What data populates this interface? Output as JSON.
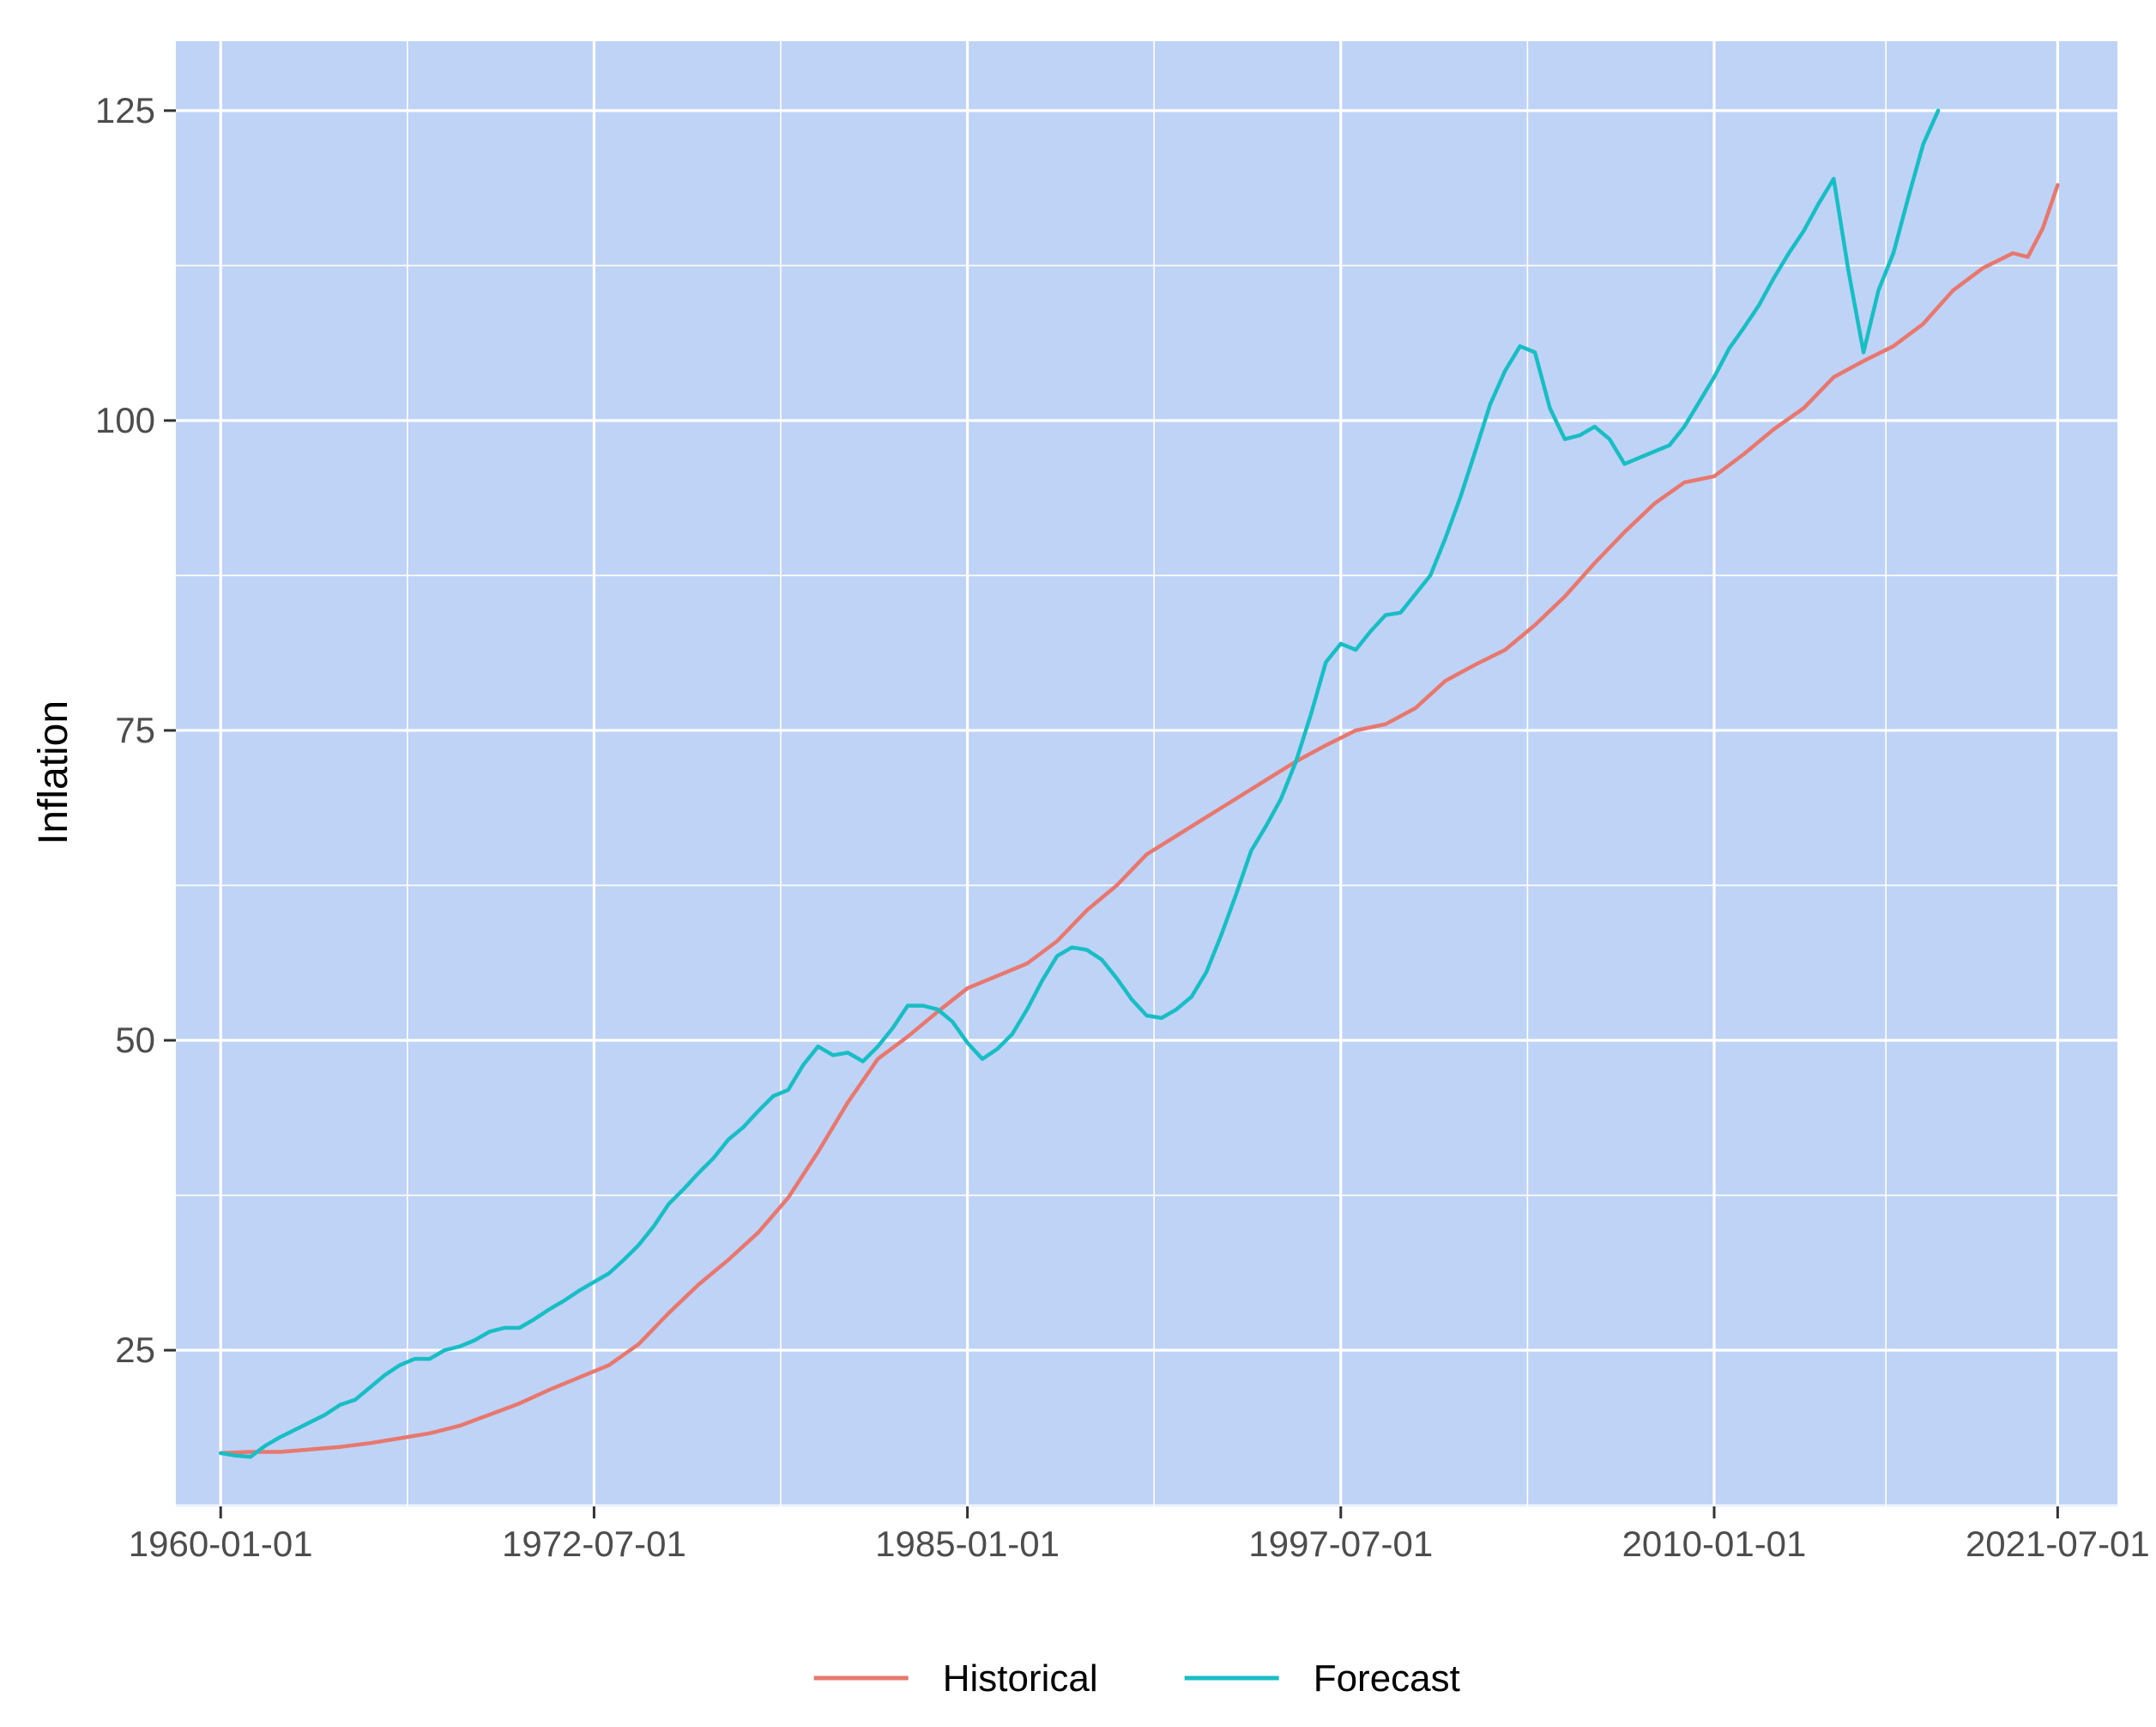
{
  "chart_data": {
    "type": "line",
    "title": "",
    "xlabel": "",
    "ylabel": "Inflation",
    "x_tick_labels": [
      "1960-01-01",
      "1972-07-01",
      "1985-01-01",
      "1997-07-01",
      "2010-01-01",
      "2021-07-01"
    ],
    "y_tick_labels": [
      "25",
      "50",
      "75",
      "100",
      "125"
    ],
    "x_range": [
      "1958-07-01",
      "2023-07-01"
    ],
    "y_range": [
      12.4,
      130.6
    ],
    "grid": true,
    "panel_background": "#bfd3f7",
    "legend_position": "bottom",
    "series": [
      {
        "name": "Historical",
        "color": "#e8776e",
        "points": [
          [
            "1960-01-01",
            16.7
          ],
          [
            "1961-01-01",
            16.8
          ],
          [
            "1962-01-01",
            16.8
          ],
          [
            "1963-01-01",
            17.0
          ],
          [
            "1964-01-01",
            17.2
          ],
          [
            "1965-01-01",
            17.5
          ],
          [
            "1966-01-01",
            17.9
          ],
          [
            "1967-01-01",
            18.3
          ],
          [
            "1968-01-01",
            18.9
          ],
          [
            "1969-01-01",
            19.8
          ],
          [
            "1970-01-01",
            20.7
          ],
          [
            "1971-01-01",
            21.8
          ],
          [
            "1972-01-01",
            22.8
          ],
          [
            "1973-01-01",
            23.8
          ],
          [
            "1974-01-01",
            25.5
          ],
          [
            "1975-01-01",
            28.0
          ],
          [
            "1976-01-01",
            30.3
          ],
          [
            "1977-01-01",
            32.3
          ],
          [
            "1978-01-01",
            34.5
          ],
          [
            "1979-01-01",
            37.3
          ],
          [
            "1980-01-01",
            41.0
          ],
          [
            "1981-01-01",
            45.0
          ],
          [
            "1982-01-01",
            48.5
          ],
          [
            "1983-01-01",
            50.3
          ],
          [
            "1984-01-01",
            52.3
          ],
          [
            "1985-01-01",
            54.2
          ],
          [
            "1986-01-01",
            55.2
          ],
          [
            "1987-01-01",
            56.2
          ],
          [
            "1988-01-01",
            58.0
          ],
          [
            "1989-01-01",
            60.5
          ],
          [
            "1990-01-01",
            62.5
          ],
          [
            "1991-01-01",
            65.0
          ],
          [
            "1992-01-01",
            66.5
          ],
          [
            "1993-01-01",
            68.0
          ],
          [
            "1994-01-01",
            69.5
          ],
          [
            "1995-01-01",
            71.0
          ],
          [
            "1996-01-01",
            72.5
          ],
          [
            "1997-01-01",
            73.8
          ],
          [
            "1998-01-01",
            75.0
          ],
          [
            "1999-01-01",
            75.5
          ],
          [
            "2000-01-01",
            76.8
          ],
          [
            "2001-01-01",
            79.0
          ],
          [
            "2002-01-01",
            80.3
          ],
          [
            "2003-01-01",
            81.5
          ],
          [
            "2004-01-01",
            83.5
          ],
          [
            "2005-01-01",
            85.8
          ],
          [
            "2006-01-01",
            88.5
          ],
          [
            "2007-01-01",
            91.0
          ],
          [
            "2008-01-01",
            93.3
          ],
          [
            "2009-01-01",
            95.0
          ],
          [
            "2010-01-01",
            95.5
          ],
          [
            "2011-01-01",
            97.3
          ],
          [
            "2012-01-01",
            99.3
          ],
          [
            "2013-01-01",
            101.0
          ],
          [
            "2014-01-01",
            103.5
          ],
          [
            "2015-01-01",
            104.8
          ],
          [
            "2016-01-01",
            106.0
          ],
          [
            "2017-01-01",
            107.8
          ],
          [
            "2018-01-01",
            110.5
          ],
          [
            "2019-01-01",
            112.3
          ],
          [
            "2020-01-01",
            113.5
          ],
          [
            "2020-07-01",
            113.2
          ],
          [
            "2021-01-01",
            115.5
          ],
          [
            "2021-07-01",
            119.0
          ]
        ]
      },
      {
        "name": "Forecast",
        "color": "#19bec4",
        "points": [
          [
            "1960-01-01",
            16.7
          ],
          [
            "1960-07-01",
            16.5
          ],
          [
            "1961-01-01",
            16.4
          ],
          [
            "1961-07-01",
            17.3
          ],
          [
            "1962-01-01",
            18.0
          ],
          [
            "1962-07-01",
            18.6
          ],
          [
            "1963-01-01",
            19.2
          ],
          [
            "1963-07-01",
            19.8
          ],
          [
            "1964-01-01",
            20.6
          ],
          [
            "1964-07-01",
            21.0
          ],
          [
            "1965-01-01",
            22.0
          ],
          [
            "1965-07-01",
            23.0
          ],
          [
            "1966-01-01",
            23.8
          ],
          [
            "1966-07-01",
            24.3
          ],
          [
            "1967-01-01",
            24.3
          ],
          [
            "1967-07-01",
            25.0
          ],
          [
            "1968-01-01",
            25.3
          ],
          [
            "1968-07-01",
            25.8
          ],
          [
            "1969-01-01",
            26.5
          ],
          [
            "1969-07-01",
            26.8
          ],
          [
            "1970-01-01",
            26.8
          ],
          [
            "1970-07-01",
            27.5
          ],
          [
            "1971-01-01",
            28.3
          ],
          [
            "1971-07-01",
            29.0
          ],
          [
            "1972-01-01",
            29.8
          ],
          [
            "1972-07-01",
            30.5
          ],
          [
            "1973-01-01",
            31.2
          ],
          [
            "1973-07-01",
            32.3
          ],
          [
            "1974-01-01",
            33.5
          ],
          [
            "1974-07-01",
            35.0
          ],
          [
            "1975-01-01",
            36.8
          ],
          [
            "1975-07-01",
            38.0
          ],
          [
            "1976-01-01",
            39.3
          ],
          [
            "1976-07-01",
            40.5
          ],
          [
            "1977-01-01",
            42.0
          ],
          [
            "1977-07-01",
            43.0
          ],
          [
            "1978-01-01",
            44.3
          ],
          [
            "1978-07-01",
            45.5
          ],
          [
            "1979-01-01",
            46.0
          ],
          [
            "1979-07-01",
            48.0
          ],
          [
            "1980-01-01",
            49.5
          ],
          [
            "1980-07-01",
            48.8
          ],
          [
            "1981-01-01",
            49.0
          ],
          [
            "1981-07-01",
            48.3
          ],
          [
            "1982-01-01",
            49.5
          ],
          [
            "1982-07-01",
            51.0
          ],
          [
            "1983-01-01",
            52.8
          ],
          [
            "1983-07-01",
            52.8
          ],
          [
            "1984-01-01",
            52.5
          ],
          [
            "1984-07-01",
            51.5
          ],
          [
            "1985-01-01",
            49.8
          ],
          [
            "1985-07-01",
            48.5
          ],
          [
            "1986-01-01",
            49.3
          ],
          [
            "1986-07-01",
            50.5
          ],
          [
            "1987-01-01",
            52.5
          ],
          [
            "1987-07-01",
            54.8
          ],
          [
            "1988-01-01",
            56.8
          ],
          [
            "1988-07-01",
            57.5
          ],
          [
            "1989-01-01",
            57.3
          ],
          [
            "1989-07-01",
            56.5
          ],
          [
            "1990-01-01",
            55.0
          ],
          [
            "1990-07-01",
            53.3
          ],
          [
            "1991-01-01",
            52.0
          ],
          [
            "1991-07-01",
            51.8
          ],
          [
            "1992-01-01",
            52.5
          ],
          [
            "1992-07-01",
            53.5
          ],
          [
            "1993-01-01",
            55.5
          ],
          [
            "1993-07-01",
            58.5
          ],
          [
            "1994-01-01",
            61.8
          ],
          [
            "1994-07-01",
            65.3
          ],
          [
            "1995-01-01",
            67.3
          ],
          [
            "1995-07-01",
            69.5
          ],
          [
            "1996-01-01",
            72.5
          ],
          [
            "1996-07-01",
            76.3
          ],
          [
            "1997-01-01",
            80.5
          ],
          [
            "1997-07-01",
            82.0
          ],
          [
            "1998-01-01",
            81.5
          ],
          [
            "1998-07-01",
            83.0
          ],
          [
            "1999-01-01",
            84.3
          ],
          [
            "1999-07-01",
            84.5
          ],
          [
            "2000-01-01",
            86.0
          ],
          [
            "2000-07-01",
            87.5
          ],
          [
            "2001-01-01",
            90.5
          ],
          [
            "2001-07-01",
            93.8
          ],
          [
            "2002-01-01",
            97.5
          ],
          [
            "2002-07-01",
            101.3
          ],
          [
            "2003-01-01",
            104.0
          ],
          [
            "2003-07-01",
            106.0
          ],
          [
            "2004-01-01",
            105.5
          ],
          [
            "2004-07-01",
            101.0
          ],
          [
            "2005-01-01",
            98.5
          ],
          [
            "2005-07-01",
            98.8
          ],
          [
            "2006-01-01",
            99.5
          ],
          [
            "2006-07-01",
            98.5
          ],
          [
            "2007-01-01",
            96.5
          ],
          [
            "2007-07-01",
            97.0
          ],
          [
            "2008-01-01",
            97.5
          ],
          [
            "2008-07-01",
            98.0
          ],
          [
            "2009-01-01",
            99.5
          ],
          [
            "2009-07-01",
            101.5
          ],
          [
            "2010-01-01",
            103.5
          ],
          [
            "2010-07-01",
            105.8
          ],
          [
            "2011-01-01",
            107.5
          ],
          [
            "2011-07-01",
            109.3
          ],
          [
            "2012-01-01",
            111.5
          ],
          [
            "2012-07-01",
            113.5
          ],
          [
            "2013-01-01",
            115.3
          ],
          [
            "2013-07-01",
            117.5
          ],
          [
            "2014-01-01",
            119.5
          ],
          [
            "2014-07-01",
            112.0
          ],
          [
            "2015-01-01",
            105.5
          ],
          [
            "2015-07-01",
            110.5
          ],
          [
            "2016-01-01",
            113.5
          ],
          [
            "2016-07-01",
            118.0
          ],
          [
            "2017-01-01",
            122.3
          ],
          [
            "2017-07-01",
            125.0
          ]
        ]
      }
    ]
  }
}
